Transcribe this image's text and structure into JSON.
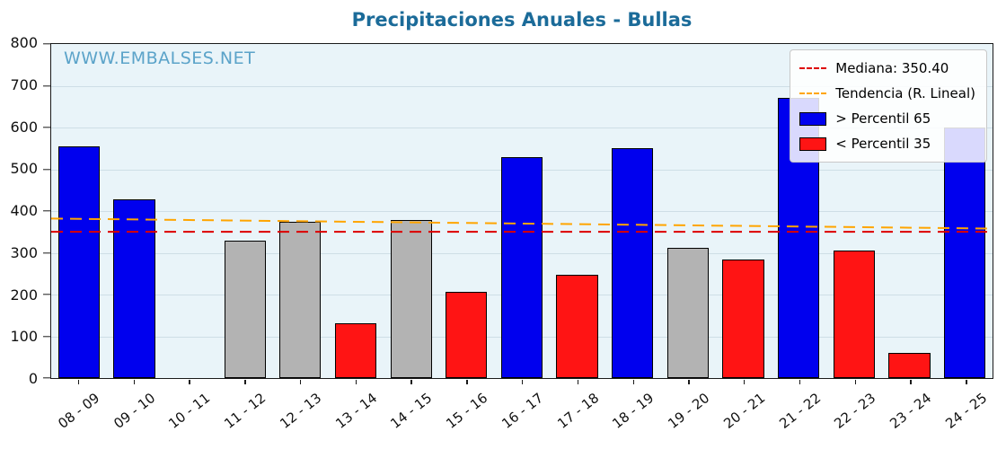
{
  "title": "Precipitaciones Anuales - Bullas",
  "watermark": "WWW.EMBALSES.NET",
  "legend": {
    "median_label": "Mediana: 350.40",
    "trend_label": "Tendencia (R. Lineal)",
    "above_label": "> Percentil 65",
    "below_label": "< Percentil 35"
  },
  "colors": {
    "above_p65": "#0000ee",
    "below_p35": "#ff1414",
    "between_percentiles": "#b3b3b3",
    "median_line": "#dd0000",
    "trend_line": "#ffa500",
    "title": "#1b6b99",
    "watermark": "#5ba3c9",
    "plot_background": "#e9f4f9"
  },
  "chart_data": {
    "type": "bar",
    "title": "Precipitaciones Anuales - Bullas",
    "xlabel": "",
    "ylabel": "",
    "ylim": [
      0,
      800
    ],
    "yticks": [
      0,
      100,
      200,
      300,
      400,
      500,
      600,
      700,
      800
    ],
    "grid": true,
    "legend_position": "top-right",
    "categories": [
      "08 - 09",
      "09 - 10",
      "10 - 11",
      "11 - 12",
      "12 - 13",
      "13 - 14",
      "14 - 15",
      "15 - 16",
      "16 - 17",
      "17 - 18",
      "18 - 19",
      "19 - 20",
      "20 - 21",
      "21 - 22",
      "22 - 23",
      "23 - 24",
      "24 - 25"
    ],
    "values": [
      555,
      428,
      null,
      328,
      375,
      131,
      378,
      207,
      528,
      248,
      550,
      312,
      283,
      670,
      306,
      60,
      600
    ],
    "bar_classes": [
      "above",
      "above",
      null,
      "mid",
      "mid",
      "below",
      "mid",
      "below",
      "above",
      "below",
      "above",
      "mid",
      "below",
      "above",
      "below",
      "below",
      "above"
    ],
    "median": 350.4,
    "trend_line": {
      "start": 382,
      "end": 358
    }
  }
}
